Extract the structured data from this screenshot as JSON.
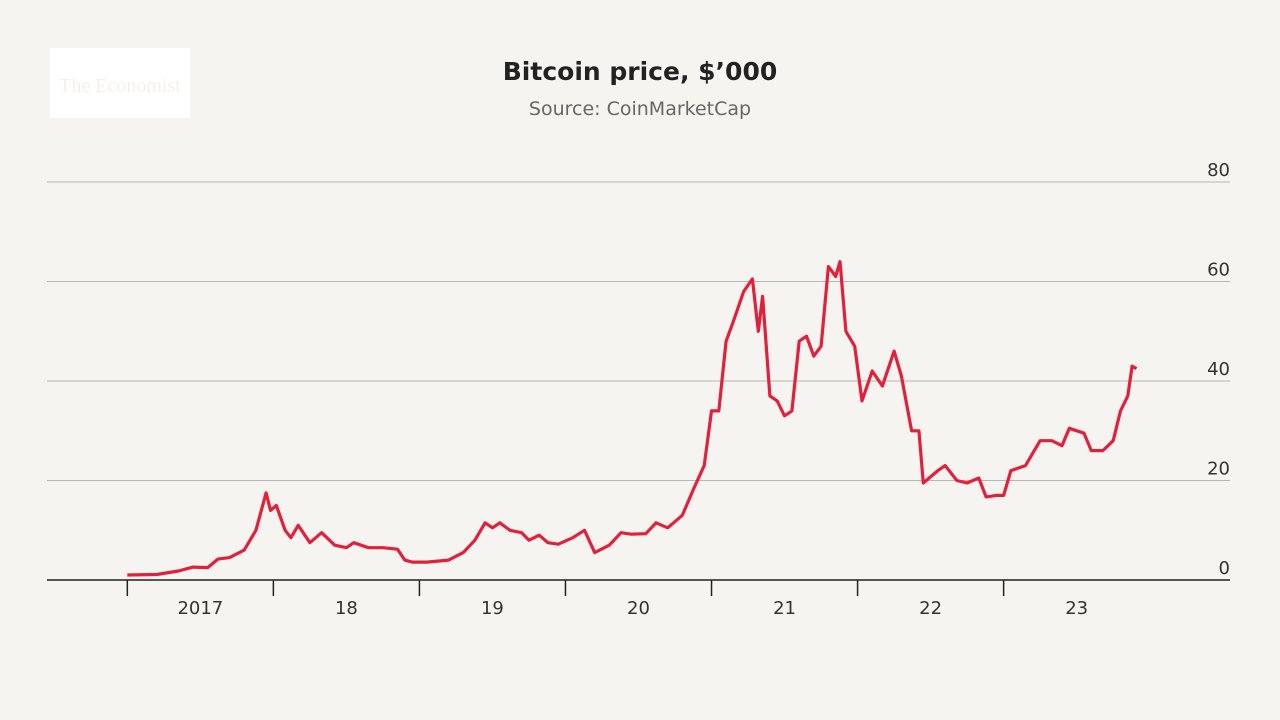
{
  "logo": "The Economist",
  "chart_data": {
    "type": "line",
    "title": "Bitcoin price, $’000",
    "subtitle": "Source: CoinMarketCap",
    "xlim": [
      2016.45,
      2024.55
    ],
    "xticks": [
      {
        "value": 2017,
        "label": "2017"
      },
      {
        "value": 2018,
        "label": "18"
      },
      {
        "value": 2019,
        "label": "19"
      },
      {
        "value": 2020,
        "label": "20"
      },
      {
        "value": 2021,
        "label": "21"
      },
      {
        "value": 2022,
        "label": "22"
      },
      {
        "value": 2023,
        "label": "23"
      }
    ],
    "ylim": [
      0,
      80
    ],
    "yticks": [
      0,
      20,
      40,
      60,
      80
    ],
    "grid": true,
    "series": [
      {
        "name": "Bitcoin",
        "color": "#e3203a",
        "x": [
          2017.0,
          2017.2,
          2017.35,
          2017.45,
          2017.55,
          2017.62,
          2017.7,
          2017.8,
          2017.88,
          2017.95,
          2017.98,
          2018.02,
          2018.08,
          2018.12,
          2018.17,
          2018.25,
          2018.33,
          2018.42,
          2018.5,
          2018.55,
          2018.65,
          2018.75,
          2018.85,
          2018.9,
          2018.95,
          2019.05,
          2019.2,
          2019.3,
          2019.38,
          2019.45,
          2019.5,
          2019.55,
          2019.62,
          2019.7,
          2019.75,
          2019.82,
          2019.88,
          2019.95,
          2020.05,
          2020.13,
          2020.2,
          2020.3,
          2020.38,
          2020.45,
          2020.55,
          2020.62,
          2020.7,
          2020.8,
          2020.88,
          2020.95,
          2021.0,
          2021.05,
          2021.1,
          2021.15,
          2021.22,
          2021.28,
          2021.32,
          2021.35,
          2021.4,
          2021.45,
          2021.5,
          2021.55,
          2021.6,
          2021.65,
          2021.7,
          2021.75,
          2021.8,
          2021.85,
          2021.88,
          2021.92,
          2021.98,
          2022.03,
          2022.1,
          2022.17,
          2022.25,
          2022.3,
          2022.37,
          2022.42,
          2022.45,
          2022.55,
          2022.6,
          2022.68,
          2022.75,
          2022.83,
          2022.88,
          2022.95,
          2023.0,
          2023.05,
          2023.15,
          2023.25,
          2023.33,
          2023.4,
          2023.45,
          2023.55,
          2023.6,
          2023.68,
          2023.75,
          2023.8,
          2023.85,
          2023.88,
          2023.91
        ],
        "values": [
          1.0,
          1.1,
          1.8,
          2.6,
          2.5,
          4.2,
          4.5,
          6.0,
          10,
          17.5,
          14,
          15,
          10,
          8.5,
          11,
          7.5,
          9.5,
          7,
          6.5,
          7.5,
          6.5,
          6.5,
          6.2,
          4.0,
          3.6,
          3.6,
          4.0,
          5.5,
          8,
          11.5,
          10.5,
          11.5,
          10,
          9.5,
          8,
          9,
          7.5,
          7.2,
          8.5,
          10,
          5.5,
          7,
          9.5,
          9.2,
          9.3,
          11.5,
          10.5,
          13,
          18.5,
          23,
          34,
          34,
          48,
          52,
          58,
          60.5,
          50,
          57,
          37,
          36,
          33,
          34,
          48,
          49,
          45,
          47,
          63,
          61,
          64,
          50,
          47,
          36,
          42,
          39,
          46,
          41,
          30,
          30,
          19.5,
          22,
          23,
          20,
          19.5,
          20.5,
          16.7,
          17,
          17,
          22,
          23,
          28,
          28,
          27,
          30.5,
          29.5,
          26,
          26,
          28,
          34,
          37,
          43,
          42.5
        ]
      }
    ]
  }
}
